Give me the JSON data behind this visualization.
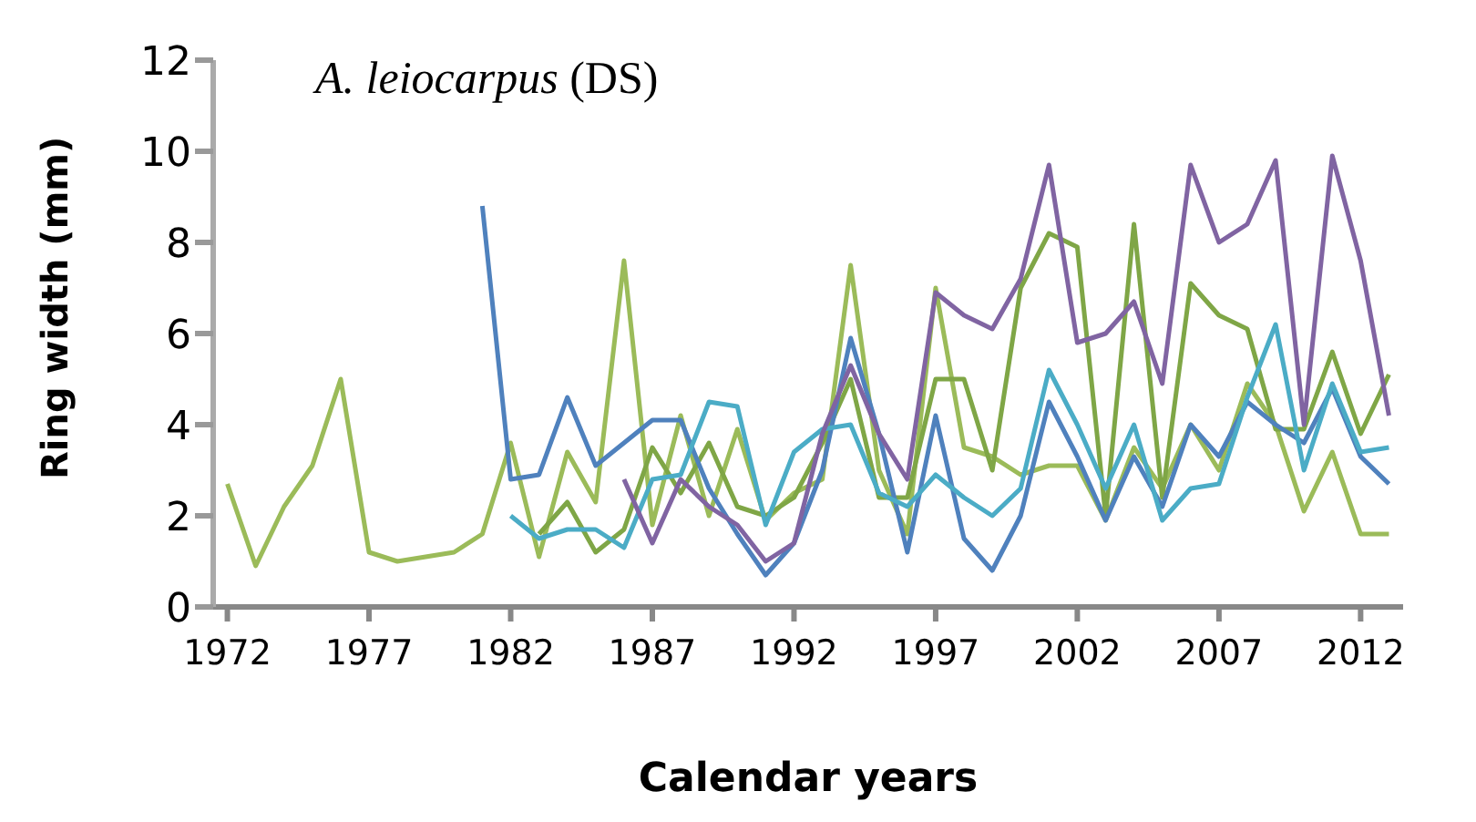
{
  "chart_data": {
    "type": "line",
    "title": "A. leiocarpus (DS)",
    "xlabel": "Calendar years",
    "ylabel": "Ring width (mm)",
    "xlim": [
      1971.5,
      2013.5
    ],
    "xticks": [
      1972,
      1977,
      1982,
      1987,
      1992,
      1997,
      2002,
      2007,
      2012
    ],
    "ylim": [
      0,
      12
    ],
    "yticks": [
      0,
      2,
      4,
      6,
      8,
      10,
      12
    ],
    "grid": false,
    "legend": false,
    "marker": "none",
    "line_style": "solid",
    "series": [
      {
        "color": "#9bbb59",
        "x": [
          1972,
          1973,
          1974,
          1975,
          1976,
          1977,
          1978,
          1979,
          1980,
          1981,
          1982,
          1983,
          1984,
          1985,
          1986,
          1987,
          1988,
          1989,
          1990,
          1991,
          1992,
          1993,
          1994,
          1995,
          1996,
          1997,
          1998,
          1999,
          2000,
          2001,
          2002,
          2003,
          2004,
          2005,
          2006,
          2007,
          2008,
          2009,
          2010,
          2011,
          2012,
          2013
        ],
        "values": [
          2.7,
          0.9,
          2.2,
          3.1,
          5.0,
          1.2,
          1.0,
          1.1,
          1.2,
          1.6,
          3.6,
          1.1,
          3.4,
          2.3,
          7.6,
          1.8,
          4.2,
          2.0,
          3.9,
          1.9,
          2.5,
          2.8,
          7.5,
          3.0,
          1.6,
          7.0,
          3.5,
          3.3,
          2.9,
          3.1,
          3.1,
          1.9,
          3.5,
          2.6,
          4.0,
          3.0,
          4.9,
          4.0,
          2.1,
          3.4,
          1.6,
          1.6
        ]
      },
      {
        "color": "#7fa646",
        "x": [
          1983,
          1984,
          1985,
          1986,
          1987,
          1988,
          1989,
          1990,
          1991,
          1992,
          1993,
          1994,
          1995,
          1996,
          1997,
          1998,
          1999,
          2000,
          2001,
          2002,
          2003,
          2004,
          2005,
          2006,
          2007,
          2008,
          2009,
          2010,
          2011,
          2012,
          2013
        ],
        "values": [
          1.6,
          2.3,
          1.2,
          1.7,
          3.5,
          2.5,
          3.6,
          2.2,
          2.0,
          2.4,
          3.6,
          5.0,
          2.4,
          2.4,
          5.0,
          5.0,
          3.0,
          7.0,
          8.2,
          7.9,
          2.0,
          8.4,
          2.4,
          7.1,
          6.4,
          6.1,
          3.9,
          3.9,
          5.6,
          3.8,
          5.1
        ]
      },
      {
        "color": "#4f81bd",
        "x": [
          1981,
          1982,
          1983,
          1984,
          1985,
          1986,
          1987,
          1988,
          1989,
          1990,
          1991,
          1992,
          1993,
          1994,
          1995,
          1996,
          1997,
          1998,
          1999,
          2000,
          2001,
          2002,
          2003,
          2004,
          2005,
          2006,
          2007,
          2008,
          2009,
          2010,
          2011,
          2012,
          2013
        ],
        "values": [
          8.8,
          2.8,
          2.9,
          4.6,
          3.1,
          3.6,
          4.1,
          4.1,
          2.6,
          1.6,
          0.7,
          1.4,
          3.0,
          5.9,
          3.8,
          1.2,
          4.2,
          1.5,
          0.8,
          2.0,
          4.5,
          3.3,
          1.9,
          3.3,
          2.2,
          4.0,
          3.3,
          4.5,
          4.0,
          3.6,
          4.8,
          3.3,
          2.7
        ]
      },
      {
        "color": "#4bacc6",
        "x": [
          1982,
          1983,
          1984,
          1985,
          1986,
          1987,
          1988,
          1989,
          1990,
          1991,
          1992,
          1993,
          1994,
          1995,
          1996,
          1997,
          1998,
          1999,
          2000,
          2001,
          2002,
          2003,
          2004,
          2005,
          2006,
          2007,
          2008,
          2009,
          2010,
          2011,
          2012,
          2013
        ],
        "values": [
          2.0,
          1.5,
          1.7,
          1.7,
          1.3,
          2.8,
          2.9,
          4.5,
          4.4,
          1.8,
          3.4,
          3.9,
          4.0,
          2.5,
          2.2,
          2.9,
          2.4,
          2.0,
          2.6,
          5.2,
          4.0,
          2.6,
          4.0,
          1.9,
          2.6,
          2.7,
          4.6,
          6.2,
          3.0,
          4.9,
          3.4,
          3.5
        ]
      },
      {
        "color": "#8064a2",
        "x": [
          1986,
          1987,
          1988,
          1989,
          1990,
          1991,
          1992,
          1993,
          1994,
          1995,
          1996,
          1997,
          1998,
          1999,
          2000,
          2001,
          2002,
          2003,
          2004,
          2005,
          2006,
          2007,
          2008,
          2009,
          2010,
          2011,
          2012,
          2013
        ],
        "values": [
          2.8,
          1.4,
          2.8,
          2.2,
          1.8,
          1.0,
          1.4,
          3.8,
          5.3,
          3.8,
          2.8,
          6.9,
          6.4,
          6.1,
          7.2,
          9.7,
          5.8,
          6.0,
          6.7,
          4.9,
          9.7,
          8.0,
          8.4,
          9.8,
          4.0,
          9.9,
          7.6,
          4.2
        ]
      }
    ]
  }
}
